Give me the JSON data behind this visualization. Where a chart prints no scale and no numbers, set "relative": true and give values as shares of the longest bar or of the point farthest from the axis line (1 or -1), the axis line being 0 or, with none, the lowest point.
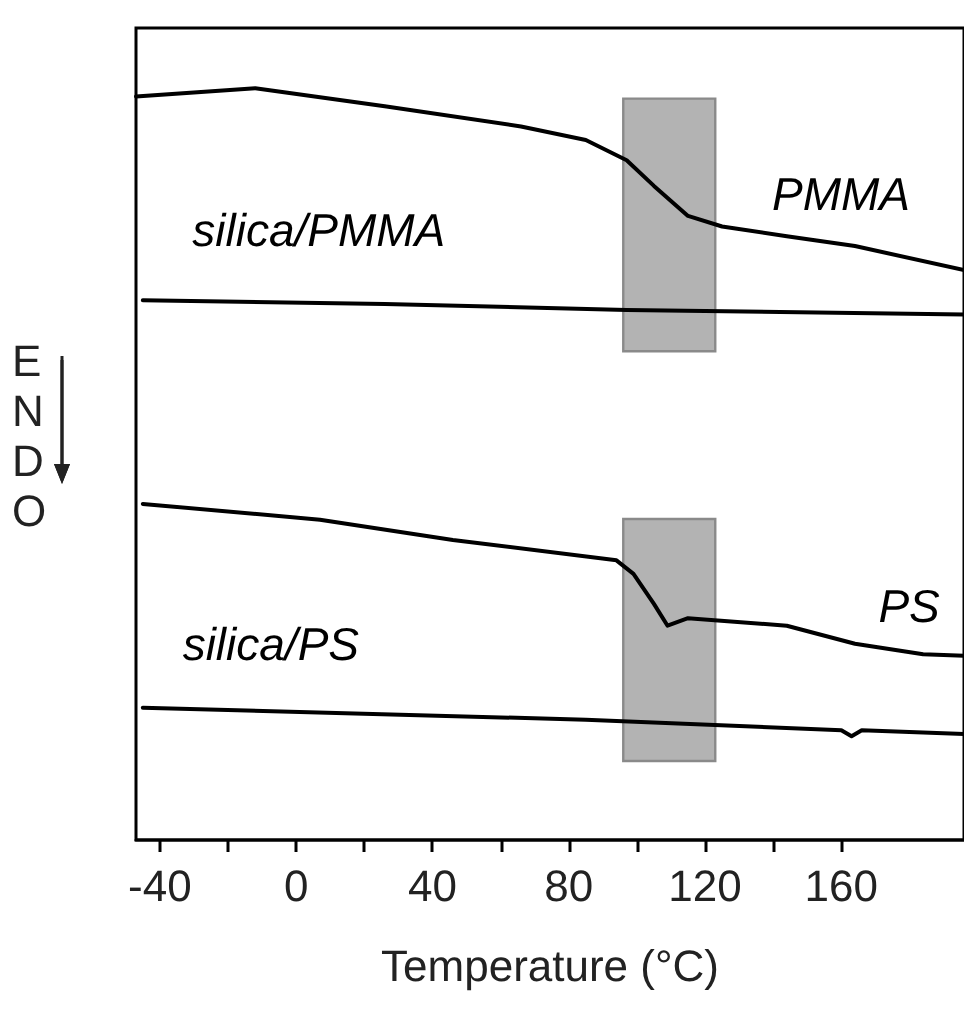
{
  "chart_data": {
    "type": "line",
    "relative": true,
    "xlabel": "Temperature (°C)",
    "ylabel": "ENDO",
    "xlim": [
      -47,
      196
    ],
    "xticks": [
      -40,
      {
        "value": -20,
        "label": null
      },
      0,
      {
        "value": 20,
        "label": null
      },
      40,
      {
        "value": 60,
        "label": null
      },
      80,
      {
        "value": 100,
        "label": null
      },
      120,
      {
        "value": 140,
        "label": null
      },
      160
    ],
    "series": [
      {
        "name": "PMMA",
        "color": "#000000",
        "x": [
          -47,
          -12,
          26,
          66,
          85,
          97,
          105,
          115,
          125,
          144,
          164,
          196
        ],
        "values": [
          0.989,
          1.0,
          0.976,
          0.949,
          0.931,
          0.904,
          0.87,
          0.83,
          0.816,
          0.803,
          0.79,
          0.758
        ]
      },
      {
        "name": "silica/PMMA",
        "color": "#000000",
        "x": [
          -45,
          26,
          97,
          196
        ],
        "values": [
          0.718,
          0.713,
          0.705,
          0.699
        ]
      },
      {
        "name": "PS",
        "color": "#000000",
        "x": [
          -45,
          7,
          46,
          94,
          99,
          105,
          109,
          115,
          144,
          164,
          184,
          196
        ],
        "values": [
          0.447,
          0.426,
          0.399,
          0.372,
          0.354,
          0.314,
          0.285,
          0.295,
          0.285,
          0.261,
          0.247,
          0.245
        ]
      },
      {
        "name": "silica/PS",
        "color": "#000000",
        "x": [
          -45,
          85,
          160,
          163,
          166,
          196
        ],
        "values": [
          0.176,
          0.16,
          0.146,
          0.138,
          0.146,
          0.141
        ]
      }
    ],
    "bands": [
      {
        "axis": "x",
        "from": 96,
        "to": 123,
        "color": "#b3b3b3"
      },
      {
        "axis": "x",
        "from": 96,
        "to": 123,
        "color": "#b3b3b3"
      }
    ],
    "grid": false,
    "marker": "none",
    "line_style": "solid"
  }
}
